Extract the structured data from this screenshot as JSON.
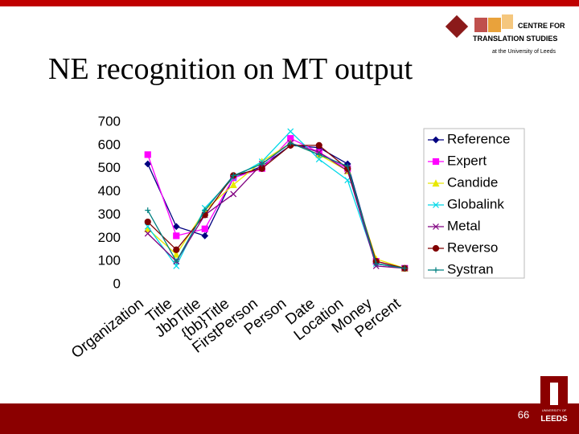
{
  "header": {
    "logo_lines": [
      "CENTRE FOR",
      "TRANSLATION STUDIES",
      "at the University of Leeds"
    ]
  },
  "footer": {
    "page_number": "66",
    "logo_lines": [
      "UNIVERSITY OF",
      "LEEDS"
    ]
  },
  "chart_data": {
    "type": "line",
    "title": "NE recognition on MT output",
    "categories": [
      "Organization",
      "Title",
      "JbbTitle",
      "{bb}Title",
      "FirstPerson",
      "Person",
      "Date",
      "Location",
      "Money",
      "Percent"
    ],
    "ylim": [
      0,
      700
    ],
    "yticks": [
      0,
      100,
      200,
      300,
      400,
      500,
      600,
      700
    ],
    "grid": false,
    "series": [
      {
        "name": "Reference",
        "color": "#000080",
        "marker": "diamond",
        "values": [
          520,
          250,
          210,
          460,
          510,
          600,
          590,
          520,
          90,
          70
        ]
      },
      {
        "name": "Expert",
        "color": "#ff00ff",
        "marker": "square",
        "values": [
          560,
          210,
          240,
          460,
          500,
          630,
          570,
          500,
          100,
          70
        ]
      },
      {
        "name": "Candide",
        "color": "#e8e800",
        "marker": "triangle",
        "values": [
          240,
          130,
          320,
          430,
          530,
          610,
          560,
          490,
          110,
          70
        ]
      },
      {
        "name": "Globalink",
        "color": "#00d8e8",
        "marker": "x",
        "values": [
          250,
          80,
          330,
          460,
          530,
          660,
          540,
          450,
          90,
          70
        ]
      },
      {
        "name": "Metal",
        "color": "#800080",
        "marker": "x",
        "values": [
          220,
          100,
          300,
          390,
          520,
          610,
          570,
          490,
          80,
          70
        ]
      },
      {
        "name": "Reverso",
        "color": "#800000",
        "marker": "circle",
        "values": [
          270,
          150,
          300,
          470,
          500,
          600,
          600,
          500,
          100,
          70
        ]
      },
      {
        "name": "Systran",
        "color": "#008080",
        "marker": "plus",
        "values": [
          320,
          100,
          320,
          470,
          520,
          610,
          560,
          510,
          90,
          70
        ]
      }
    ]
  }
}
